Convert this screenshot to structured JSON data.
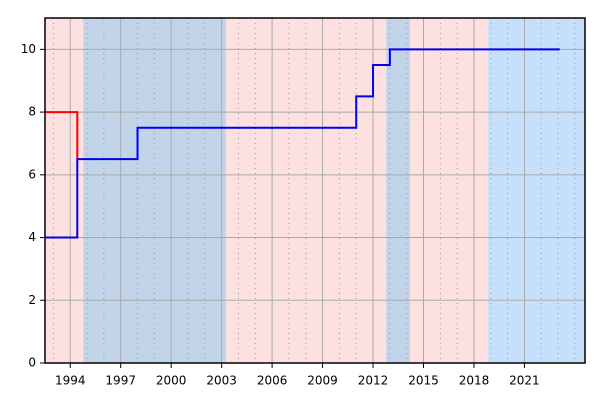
{
  "chart_data": {
    "type": "step",
    "xlim": [
      1992.5,
      2024.6
    ],
    "ylim": [
      0,
      11
    ],
    "xticks": [
      1994,
      1997,
      2000,
      2003,
      2006,
      2009,
      2012,
      2015,
      2018,
      2021
    ],
    "minor_xticks": [
      1993,
      1995,
      1996,
      1998,
      1999,
      2001,
      2002,
      2004,
      2005,
      2007,
      2008,
      2010,
      2011,
      2013,
      2014,
      2016,
      2017,
      2019,
      2020,
      2022,
      2023,
      2024
    ],
    "yticks": [
      0,
      2,
      4,
      6,
      8,
      10
    ],
    "grid": true,
    "bands": [
      {
        "start": 1992.5,
        "end": 1994.77,
        "color": "#fde0e0"
      },
      {
        "start": 1994.77,
        "end": 2003.27,
        "color": "#c2d4ea"
      },
      {
        "start": 2003.27,
        "end": 2012.78,
        "color": "#fde0e0"
      },
      {
        "start": 2012.78,
        "end": 2014.2,
        "color": "#c2d4ea"
      },
      {
        "start": 2014.2,
        "end": 2018.84,
        "color": "#fde0e0"
      },
      {
        "start": 2018.84,
        "end": 2024.6,
        "color": "#c6e0fb"
      }
    ],
    "series": [
      {
        "color": "#ff0000",
        "x": [
          1992.5,
          1994.42
        ],
        "values": [
          8,
          6.5
        ]
      },
      {
        "color": "#0000ee",
        "x": [
          1992.5,
          1994.42,
          1998,
          2011,
          2012,
          2013,
          2023.1
        ],
        "values": [
          4,
          6.5,
          7.5,
          8.5,
          9.5,
          10,
          10
        ]
      }
    ]
  }
}
